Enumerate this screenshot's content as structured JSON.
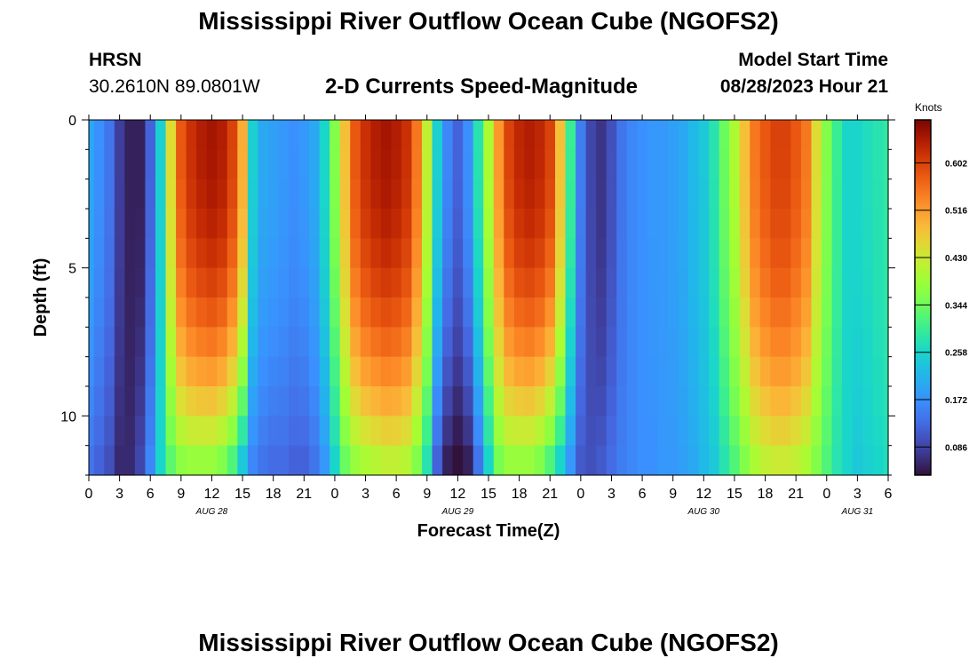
{
  "page": {
    "title_top": "Mississippi River Outflow Ocean Cube (NGOFS2)",
    "title_bottom": "Mississippi River Outflow Ocean Cube (NGOFS2)",
    "station_name": "HRSN",
    "station_coords": "30.2610N  89.0801W",
    "subtitle": "2-D Currents Speed-Magnitude",
    "model_start_label": "Model Start Time",
    "model_start_value": "08/28/2023 Hour 21"
  },
  "chart_data": {
    "type": "heatmap",
    "title": "2-D Currents Speed-Magnitude",
    "xlabel": "Forecast Time(Z)",
    "ylabel": "Depth (ft)",
    "x_hours_since_start": [
      0,
      3,
      6,
      9,
      12,
      15,
      18,
      21,
      24,
      27,
      30,
      33,
      36,
      39,
      42,
      45,
      48,
      51,
      54,
      57,
      60,
      63,
      66,
      69,
      72,
      75,
      78
    ],
    "x_tick_labels": [
      "0",
      "3",
      "6",
      "9",
      "12",
      "15",
      "18",
      "21",
      "0",
      "3",
      "6",
      "9",
      "12",
      "15",
      "18",
      "21",
      "0",
      "3",
      "6",
      "9",
      "12",
      "15",
      "18",
      "21",
      "0",
      "3",
      "6"
    ],
    "date_labels": [
      {
        "label": "AUG 28",
        "hour": 12
      },
      {
        "label": "AUG 29",
        "hour": 36
      },
      {
        "label": "AUG 30",
        "hour": 60
      },
      {
        "label": "AUG 31",
        "hour": 75
      }
    ],
    "xlim": [
      0,
      78
    ],
    "y_ticks": [
      0,
      5,
      10
    ],
    "y_tick_labels": [
      "0",
      "5",
      "10"
    ],
    "ylim": [
      0,
      12
    ],
    "depth_rows": 12,
    "time_step_hours": 1,
    "surface_speed_knots": [
      0.2,
      0.17,
      0.14,
      0.08,
      0.05,
      0.05,
      0.12,
      0.25,
      0.45,
      0.58,
      0.62,
      0.64,
      0.65,
      0.64,
      0.6,
      0.5,
      0.25,
      0.2,
      0.19,
      0.18,
      0.17,
      0.18,
      0.2,
      0.26,
      0.36,
      0.48,
      0.58,
      0.62,
      0.64,
      0.65,
      0.64,
      0.62,
      0.55,
      0.42,
      0.25,
      0.16,
      0.12,
      0.17,
      0.28,
      0.4,
      0.52,
      0.6,
      0.63,
      0.64,
      0.63,
      0.6,
      0.48,
      0.3,
      0.15,
      0.09,
      0.07,
      0.1,
      0.14,
      0.16,
      0.17,
      0.18,
      0.18,
      0.19,
      0.2,
      0.22,
      0.24,
      0.28,
      0.34,
      0.4,
      0.48,
      0.55,
      0.58,
      0.6,
      0.6,
      0.58,
      0.55,
      0.45,
      0.36,
      0.3,
      0.26,
      0.26,
      0.27,
      0.28,
      0.29
    ],
    "bottom_speed_knots": [
      0.14,
      0.12,
      0.1,
      0.06,
      0.06,
      0.09,
      0.16,
      0.26,
      0.33,
      0.37,
      0.38,
      0.38,
      0.38,
      0.36,
      0.32,
      0.24,
      0.16,
      0.14,
      0.13,
      0.13,
      0.12,
      0.12,
      0.14,
      0.18,
      0.26,
      0.34,
      0.38,
      0.4,
      0.41,
      0.42,
      0.42,
      0.41,
      0.36,
      0.28,
      0.12,
      0.05,
      0.03,
      0.05,
      0.14,
      0.26,
      0.35,
      0.38,
      0.38,
      0.38,
      0.36,
      0.32,
      0.26,
      0.18,
      0.11,
      0.1,
      0.11,
      0.13,
      0.15,
      0.16,
      0.17,
      0.17,
      0.18,
      0.18,
      0.19,
      0.2,
      0.22,
      0.24,
      0.28,
      0.32,
      0.36,
      0.4,
      0.42,
      0.43,
      0.43,
      0.42,
      0.4,
      0.36,
      0.32,
      0.28,
      0.26,
      0.24,
      0.25,
      0.26,
      0.27
    ],
    "colorbar": {
      "title": "Knots",
      "ticks": [
        0.086,
        0.172,
        0.258,
        0.344,
        0.43,
        0.516,
        0.602
      ],
      "tick_labels": [
        "0.086",
        "0.172",
        "0.258",
        "0.344",
        "0.430",
        "0.516",
        "0.602"
      ],
      "range": [
        0.035,
        0.68
      ],
      "colormap": "turbo"
    }
  }
}
